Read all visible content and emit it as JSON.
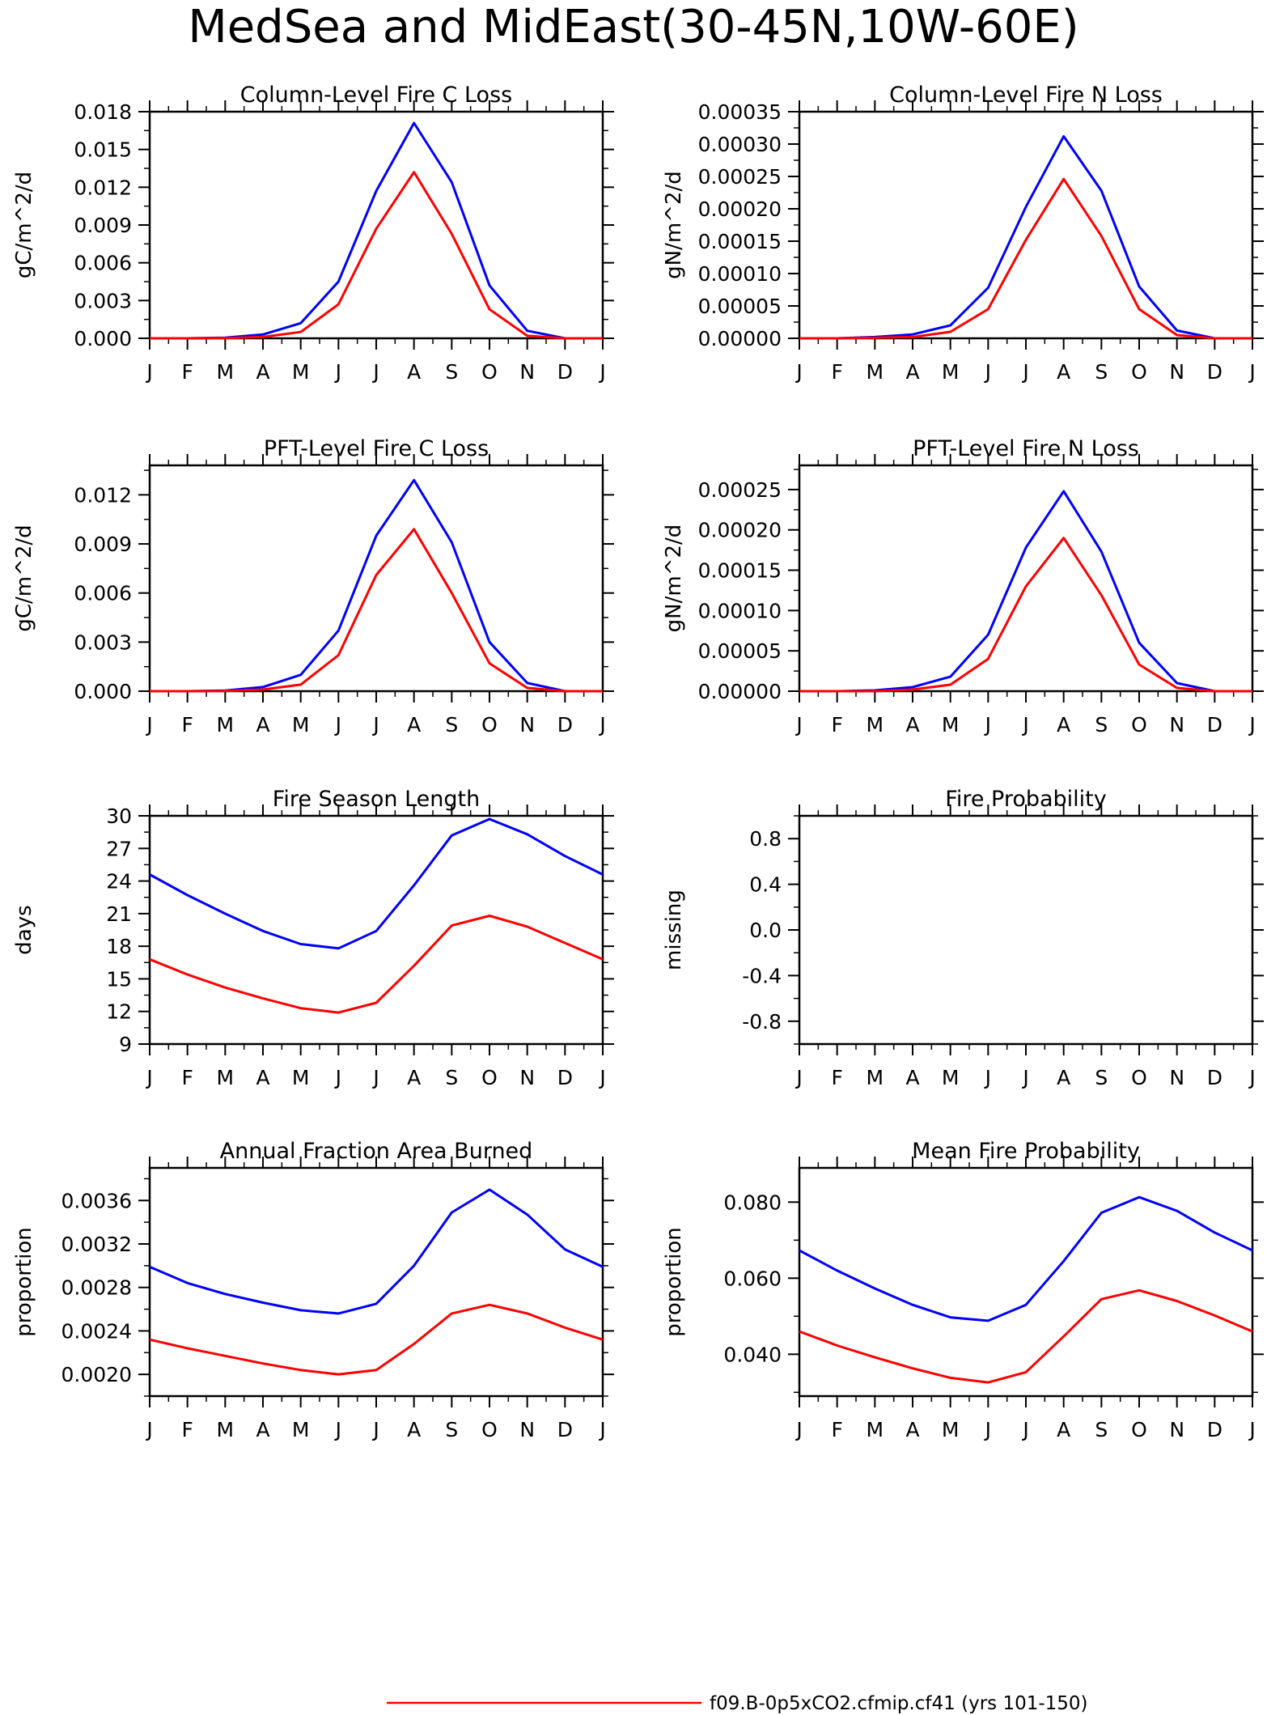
{
  "page": {
    "title": "MedSea and MidEast(30-45N,10W-60E)",
    "legend_label": "f09.B-0p5xCO2.cfmip.cf41 (yrs 101-150)",
    "legend_color": "#ff0000"
  },
  "colors": {
    "blue": "#0000ff",
    "red": "#ff0000",
    "axis": "#000000"
  },
  "months": [
    "J",
    "F",
    "M",
    "A",
    "M",
    "J",
    "J",
    "A",
    "S",
    "O",
    "N",
    "D",
    "J"
  ],
  "chart_data": [
    {
      "type": "line",
      "title": "Column-Level Fire C Loss",
      "ylabel": "gC/m^2/d",
      "ylim": [
        0,
        0.018
      ],
      "yticks": [
        0.0,
        0.003,
        0.006,
        0.009,
        0.012,
        0.015,
        0.018
      ],
      "ytick_labels": [
        "0.000",
        "0.003",
        "0.006",
        "0.009",
        "0.012",
        "0.015",
        "0.018"
      ],
      "series": [
        {
          "color": "#0000ff",
          "values": [
            0.0,
            0.0,
            5e-05,
            0.0003,
            0.0012,
            0.0045,
            0.0117,
            0.0171,
            0.0124,
            0.0042,
            0.0006,
            0.0,
            0.0
          ]
        },
        {
          "color": "#ff0000",
          "values": [
            0.0,
            0.0,
            2e-05,
            0.0001,
            0.0005,
            0.0027,
            0.0087,
            0.0132,
            0.0083,
            0.0023,
            0.0002,
            0.0,
            0.0
          ]
        }
      ]
    },
    {
      "type": "line",
      "title": "Column-Level Fire N Loss",
      "ylabel": "gN/m^2/d",
      "ylim": [
        0,
        0.00035
      ],
      "yticks": [
        0.0,
        5e-05,
        0.0001,
        0.00015,
        0.0002,
        0.00025,
        0.0003,
        0.00035
      ],
      "ytick_labels": [
        "0.00000",
        "0.00005",
        "0.00010",
        "0.00015",
        "0.00020",
        "0.00025",
        "0.00030",
        "0.00035"
      ],
      "series": [
        {
          "color": "#0000ff",
          "values": [
            0.0,
            0.0,
            2e-06,
            6e-06,
            2e-05,
            7.8e-05,
            0.000203,
            0.000312,
            0.000228,
            8e-05,
            1.2e-05,
            0.0,
            0.0
          ]
        },
        {
          "color": "#ff0000",
          "values": [
            0.0,
            0.0,
            1e-06,
            2e-06,
            1e-05,
            4.5e-05,
            0.000152,
            0.000246,
            0.000158,
            4.5e-05,
            5e-06,
            0.0,
            0.0
          ]
        }
      ]
    },
    {
      "type": "line",
      "title": "PFT-Level Fire C Loss",
      "ylabel": "gC/m^2/d",
      "ylim": [
        0,
        0.0138
      ],
      "yticks": [
        0.0,
        0.003,
        0.006,
        0.009,
        0.012
      ],
      "ytick_labels": [
        "0.000",
        "0.003",
        "0.006",
        "0.009",
        "0.012"
      ],
      "series": [
        {
          "color": "#0000ff",
          "values": [
            0.0,
            0.0,
            4e-05,
            0.00025,
            0.001,
            0.0037,
            0.0095,
            0.0129,
            0.0091,
            0.003,
            0.0005,
            0.0,
            0.0
          ]
        },
        {
          "color": "#ff0000",
          "values": [
            0.0,
            0.0,
            1e-05,
            0.0001,
            0.0004,
            0.0022,
            0.0071,
            0.0099,
            0.006,
            0.0017,
            0.0002,
            0.0,
            0.0
          ]
        }
      ]
    },
    {
      "type": "line",
      "title": "PFT-Level Fire N Loss",
      "ylabel": "gN/m^2/d",
      "ylim": [
        0,
        0.00028
      ],
      "yticks": [
        0.0,
        5e-05,
        0.0001,
        0.00015,
        0.0002,
        0.00025
      ],
      "ytick_labels": [
        "0.00000",
        "0.00005",
        "0.00010",
        "0.00015",
        "0.00020",
        "0.00025"
      ],
      "series": [
        {
          "color": "#0000ff",
          "values": [
            0.0,
            0.0,
            1e-06,
            5e-06,
            1.8e-05,
            7e-05,
            0.000178,
            0.000248,
            0.000173,
            6e-05,
            1e-05,
            0.0,
            0.0
          ]
        },
        {
          "color": "#ff0000",
          "values": [
            0.0,
            0.0,
            0.0,
            2e-06,
            8e-06,
            4e-05,
            0.00013,
            0.00019,
            0.000119,
            3.3e-05,
            4e-06,
            0.0,
            0.0
          ]
        }
      ]
    },
    {
      "type": "line",
      "title": "Fire Season Length",
      "ylabel": "days",
      "ylim": [
        9,
        30
      ],
      "yticks": [
        9,
        12,
        15,
        18,
        21,
        24,
        27,
        30
      ],
      "ytick_labels": [
        "9",
        "12",
        "15",
        "18",
        "21",
        "24",
        "27",
        "30"
      ],
      "series": [
        {
          "color": "#0000ff",
          "values": [
            24.6,
            22.7,
            21.0,
            19.4,
            18.2,
            17.8,
            19.4,
            23.6,
            28.2,
            29.7,
            28.3,
            26.3,
            24.6
          ]
        },
        {
          "color": "#ff0000",
          "values": [
            16.8,
            15.4,
            14.2,
            13.2,
            12.3,
            11.9,
            12.8,
            16.2,
            19.9,
            20.8,
            19.8,
            18.3,
            16.8
          ]
        }
      ]
    },
    {
      "type": "line",
      "title": "Fire Probability",
      "ylabel": "missing",
      "ylim": [
        -1,
        1
      ],
      "yticks": [
        -0.8,
        -0.4,
        0.0,
        0.4,
        0.8
      ],
      "ytick_labels": [
        "-0.8",
        "-0.4",
        "0.0",
        "0.4",
        "0.8"
      ],
      "series": []
    },
    {
      "type": "line",
      "title": "Annual Fraction Area Burned",
      "ylabel": "proportion",
      "ylim": [
        0.0018,
        0.0039
      ],
      "yticks": [
        0.002,
        0.0024,
        0.0028,
        0.0032,
        0.0036
      ],
      "ytick_labels": [
        "0.0020",
        "0.0024",
        "0.0028",
        "0.0032",
        "0.0036"
      ],
      "series": [
        {
          "color": "#0000ff",
          "values": [
            0.00299,
            0.00284,
            0.00274,
            0.00266,
            0.00259,
            0.00256,
            0.00265,
            0.003,
            0.00349,
            0.0037,
            0.00347,
            0.00315,
            0.00299
          ]
        },
        {
          "color": "#ff0000",
          "values": [
            0.00232,
            0.00224,
            0.00217,
            0.0021,
            0.00204,
            0.002,
            0.00204,
            0.00228,
            0.00256,
            0.00264,
            0.00256,
            0.00243,
            0.00232
          ]
        }
      ]
    },
    {
      "type": "line",
      "title": "Mean Fire Probability",
      "ylabel": "proportion",
      "ylim": [
        0.029,
        0.089
      ],
      "yticks": [
        0.04,
        0.06,
        0.08
      ],
      "ytick_labels": [
        "0.040",
        "0.060",
        "0.080"
      ],
      "series": [
        {
          "color": "#0000ff",
          "values": [
            0.0673,
            0.062,
            0.0573,
            0.053,
            0.0497,
            0.0488,
            0.053,
            0.0645,
            0.0772,
            0.0813,
            0.0777,
            0.072,
            0.0673
          ]
        },
        {
          "color": "#ff0000",
          "values": [
            0.046,
            0.0423,
            0.0392,
            0.0363,
            0.0338,
            0.0326,
            0.0353,
            0.0447,
            0.0545,
            0.0568,
            0.054,
            0.0502,
            0.046
          ]
        }
      ]
    }
  ]
}
